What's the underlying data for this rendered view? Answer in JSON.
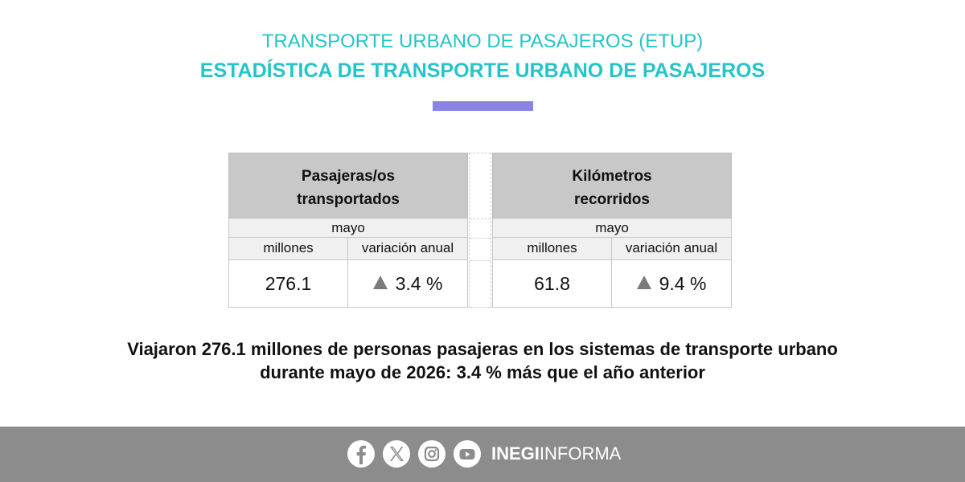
{
  "header": {
    "title": "TRANSPORTE URBANO DE PASAJEROS (ETUP)",
    "subtitle": "ESTADÍSTICA DE TRANSPORTE URBANO DE PASAJEROS"
  },
  "table": {
    "left": {
      "heading": "Pasajeras/os transportados",
      "period": "mayo",
      "col1": "millones",
      "col2": "variación anual",
      "value": "276.1",
      "change": "3.4 %"
    },
    "right": {
      "heading": "Kilómetros recorridos",
      "period": "mayo",
      "col1": "millones",
      "col2": "variación anual",
      "value": "61.8",
      "change": "9.4 %"
    }
  },
  "headline": {
    "line1": "Viajaron 276.1 millones de personas pasajeras en los sistemas de transporte urbano",
    "line2": "durante mayo de 2026: 3.4 % más que el año anterior"
  },
  "footer": {
    "icons": [
      "facebook-icon",
      "x-icon",
      "instagram-icon",
      "youtube-icon"
    ],
    "brand_bold": "INEGI",
    "brand_regular": "INFORMA"
  },
  "colors": {
    "title": "#24c4c9",
    "accent_bar": "#8b84e6",
    "header_cell": "#c8c8c8",
    "footer": "#8c8c8c"
  }
}
